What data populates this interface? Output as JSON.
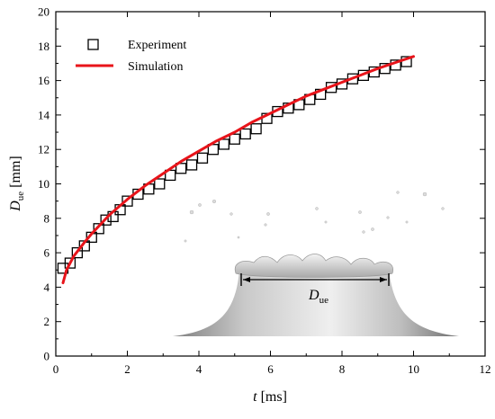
{
  "chart_data": {
    "type": "line",
    "xlim": [
      0,
      12
    ],
    "ylim": [
      0,
      20
    ],
    "x_ticks": [
      0,
      2,
      4,
      6,
      8,
      10,
      12
    ],
    "y_ticks": [
      0,
      2,
      4,
      6,
      8,
      10,
      12,
      14,
      16,
      18,
      20
    ],
    "xlabel": {
      "symbol": "t",
      "unit": "[ms]"
    },
    "ylabel": {
      "symbol": "D",
      "subscript": "ue",
      "unit": "[mm]"
    },
    "legend_position": "top-left",
    "series": [
      {
        "name": "Experiment",
        "marker": "open-square",
        "color": "#000000",
        "x": [
          0.2,
          0.4,
          0.6,
          0.8,
          1.0,
          1.2,
          1.4,
          1.6,
          1.8,
          2.0,
          2.3,
          2.6,
          2.9,
          3.2,
          3.5,
          3.8,
          4.1,
          4.4,
          4.7,
          5.0,
          5.3,
          5.6,
          5.9,
          6.2,
          6.5,
          6.8,
          7.1,
          7.4,
          7.7,
          8.0,
          8.3,
          8.6,
          8.9,
          9.2,
          9.5,
          9.8
        ],
        "y": [
          5.1,
          5.4,
          6.0,
          6.4,
          6.9,
          7.4,
          7.9,
          8.1,
          8.5,
          9.0,
          9.4,
          9.7,
          10.0,
          10.5,
          10.9,
          11.1,
          11.5,
          12.0,
          12.3,
          12.6,
          12.9,
          13.2,
          13.8,
          14.2,
          14.4,
          14.6,
          14.9,
          15.2,
          15.6,
          15.8,
          16.1,
          16.3,
          16.5,
          16.7,
          16.9,
          17.1
        ]
      },
      {
        "name": "Simulation",
        "marker": "line",
        "color": "#e8141a",
        "x": [
          0.2,
          0.3,
          0.5,
          0.8,
          1.0,
          1.5,
          2.0,
          2.5,
          3.0,
          3.5,
          4.0,
          4.5,
          5.0,
          5.5,
          6.0,
          6.5,
          7.0,
          7.5,
          8.0,
          8.5,
          9.0,
          9.5,
          10.0
        ],
        "y": [
          4.25,
          5.0,
          5.8,
          6.6,
          7.1,
          8.2,
          9.1,
          9.9,
          10.6,
          11.3,
          11.9,
          12.5,
          13.0,
          13.6,
          14.1,
          14.6,
          15.1,
          15.5,
          15.9,
          16.3,
          16.7,
          17.05,
          17.4
        ]
      }
    ],
    "inset": {
      "description_label": {
        "symbol": "D",
        "subscript": "ue"
      }
    }
  }
}
